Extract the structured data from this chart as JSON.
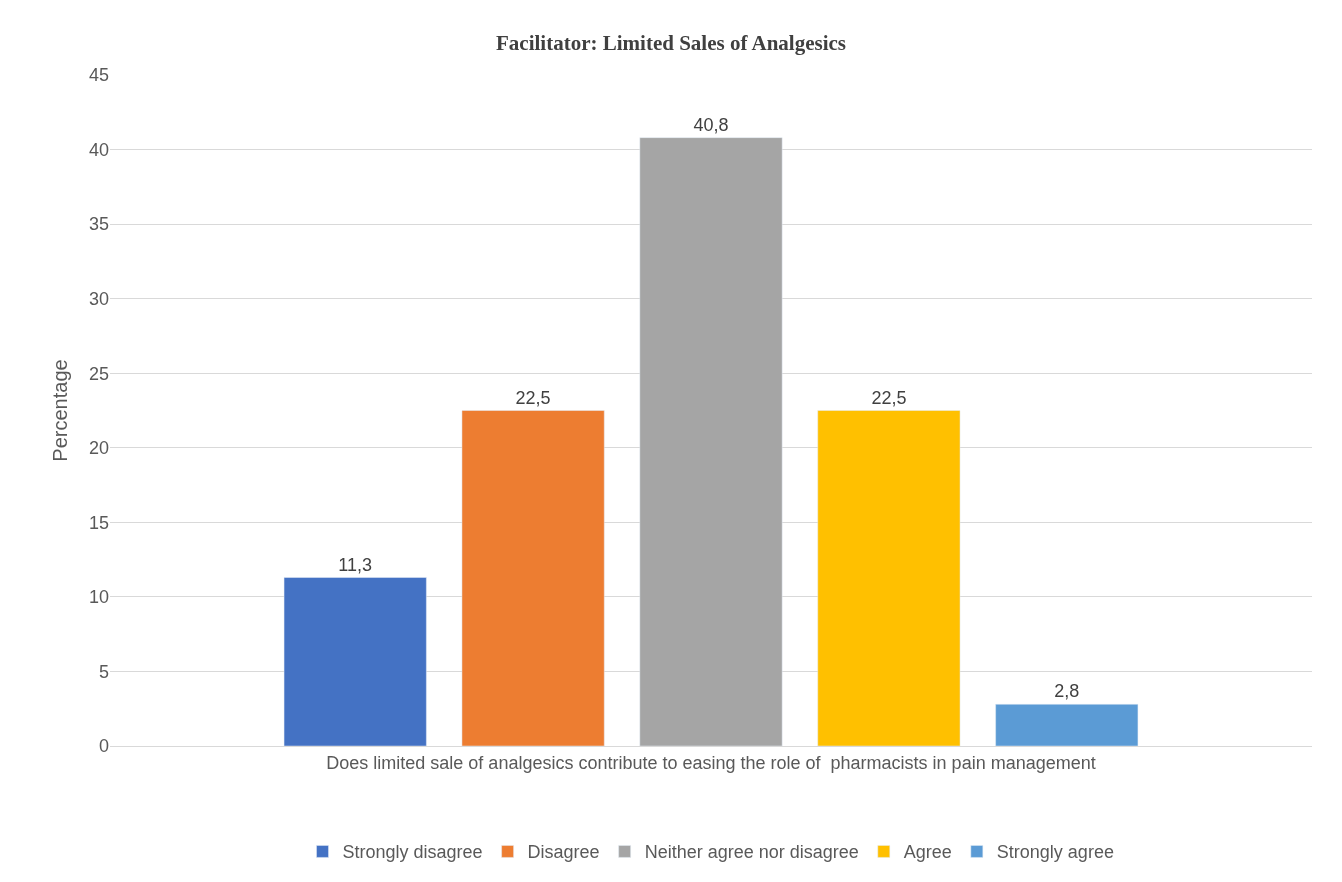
{
  "chart_data": {
    "type": "bar",
    "title": "Facilitator: Limited Sales of Analgesics",
    "ylabel": "Percentage",
    "categories": [
      "Does limited sale of analgesics contribute to easing the role of  pharmacists in pain management"
    ],
    "series": [
      {
        "name": "Strongly disagree",
        "color": "#4472c4",
        "values": [
          11.3
        ],
        "value_labels": [
          "11,3"
        ]
      },
      {
        "name": "Disagree",
        "color": "#ed7d31",
        "values": [
          22.5
        ],
        "value_labels": [
          "22,5"
        ]
      },
      {
        "name": "Neither agree nor disagree",
        "color": "#a5a5a5",
        "values": [
          40.8
        ],
        "value_labels": [
          "40,8"
        ]
      },
      {
        "name": "Agree",
        "color": "#ffc000",
        "values": [
          22.5
        ],
        "value_labels": [
          "22,5"
        ]
      },
      {
        "name": "Strongly agree",
        "color": "#5b9bd5",
        "values": [
          2.8
        ],
        "value_labels": [
          "2,8"
        ]
      }
    ],
    "ylim": [
      0,
      45
    ],
    "yticks": [
      0,
      5,
      10,
      15,
      20,
      25,
      30,
      35,
      40,
      45
    ],
    "grid": "y",
    "legend": "bottom"
  }
}
